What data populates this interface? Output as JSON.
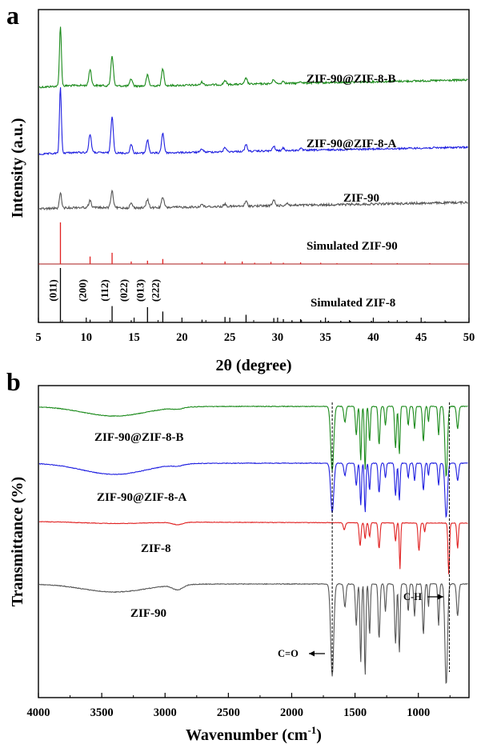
{
  "chart_data": [
    {
      "panel": "a",
      "type": "line",
      "xlabel": "2θ (degree)",
      "ylabel": "Intensity (a.u.)",
      "xlim": [
        5,
        50
      ],
      "xticks": [
        5,
        10,
        15,
        20,
        25,
        30,
        35,
        40,
        45,
        50
      ],
      "series": [
        {
          "name": "ZIF-90@ZIF-8-B",
          "color": "#1a8a1a",
          "peaks": [
            [
              7.3,
              1.0
            ],
            [
              10.4,
              0.27
            ],
            [
              12.7,
              0.5
            ],
            [
              14.7,
              0.12
            ],
            [
              16.4,
              0.18
            ],
            [
              18.0,
              0.28
            ],
            [
              22.1,
              0.05
            ],
            [
              24.5,
              0.07
            ],
            [
              26.7,
              0.1
            ],
            [
              29.6,
              0.07
            ],
            [
              30.6,
              0.04
            ],
            [
              32.4,
              0.03
            ]
          ]
        },
        {
          "name": "ZIF-90@ZIF-8-A",
          "color": "#1f1fe0",
          "peaks": [
            [
              7.3,
              1.0
            ],
            [
              10.4,
              0.28
            ],
            [
              12.7,
              0.55
            ],
            [
              14.7,
              0.13
            ],
            [
              16.4,
              0.2
            ],
            [
              18.0,
              0.3
            ],
            [
              22.1,
              0.05
            ],
            [
              24.5,
              0.07
            ],
            [
              26.7,
              0.1
            ],
            [
              29.6,
              0.07
            ],
            [
              30.6,
              0.04
            ],
            [
              32.4,
              0.03
            ]
          ]
        },
        {
          "name": "ZIF-90",
          "color": "#555555",
          "peaks": [
            [
              7.3,
              0.35
            ],
            [
              10.4,
              0.15
            ],
            [
              12.7,
              0.35
            ],
            [
              14.7,
              0.1
            ],
            [
              16.4,
              0.18
            ],
            [
              18.0,
              0.22
            ],
            [
              22.1,
              0.06
            ],
            [
              24.5,
              0.05
            ],
            [
              26.7,
              0.1
            ],
            [
              29.6,
              0.12
            ],
            [
              31.0,
              0.05
            ]
          ]
        },
        {
          "name": "Simulated ZIF-90",
          "color": "#e02020",
          "sticks": [
            [
              7.3,
              1.0
            ],
            [
              10.4,
              0.18
            ],
            [
              12.7,
              0.27
            ],
            [
              14.7,
              0.06
            ],
            [
              16.4,
              0.08
            ],
            [
              18.0,
              0.12
            ],
            [
              22.1,
              0.04
            ],
            [
              24.5,
              0.06
            ],
            [
              26.3,
              0.06
            ],
            [
              27.6,
              0.03
            ],
            [
              29.3,
              0.05
            ],
            [
              30.6,
              0.03
            ],
            [
              32.4,
              0.04
            ],
            [
              34.5,
              0.03
            ],
            [
              36.2,
              0.02
            ],
            [
              39.8,
              0.02
            ],
            [
              42.5,
              0.02
            ],
            [
              45.9,
              0.02
            ]
          ]
        },
        {
          "name": "Simulated ZIF-8",
          "color": "#000000",
          "sticks": [
            [
              7.3,
              1.0
            ],
            [
              10.4,
              0.05
            ],
            [
              12.7,
              0.3
            ],
            [
              14.7,
              0.04
            ],
            [
              16.4,
              0.28
            ],
            [
              18.0,
              0.2
            ],
            [
              22.1,
              0.05
            ],
            [
              24.5,
              0.1
            ],
            [
              26.7,
              0.14
            ],
            [
              29.6,
              0.08
            ],
            [
              30.6,
              0.06
            ],
            [
              31.5,
              0.04
            ],
            [
              32.4,
              0.06
            ],
            [
              34.5,
              0.04
            ],
            [
              35.3,
              0.03
            ],
            [
              36.6,
              0.03
            ],
            [
              37.6,
              0.03
            ],
            [
              39.8,
              0.03
            ],
            [
              41.6,
              0.03
            ],
            [
              43.5,
              0.03
            ],
            [
              45.4,
              0.02
            ],
            [
              47.6,
              0.02
            ]
          ]
        }
      ],
      "hkl_labels": [
        {
          "text": "(011)",
          "x": 7.3
        },
        {
          "text": "(200)",
          "x": 10.4
        },
        {
          "text": "(112)",
          "x": 12.7
        },
        {
          "text": "(022)",
          "x": 14.7
        },
        {
          "text": "(013)",
          "x": 16.4
        },
        {
          "text": "(222)",
          "x": 18.0
        }
      ]
    },
    {
      "panel": "b",
      "type": "line",
      "xlabel": "Wavenumber (cm⁻¹)",
      "ylabel": "Transmittance (%)",
      "xlim": [
        4000,
        600
      ],
      "xticks": [
        4000,
        3500,
        3000,
        2500,
        2000,
        1500,
        1000
      ],
      "series": [
        {
          "name": "ZIF-90@ZIF-8-B",
          "color": "#1a8a1a"
        },
        {
          "name": "ZIF-90@ZIF-8-A",
          "color": "#1f1fe0"
        },
        {
          "name": "ZIF-8",
          "color": "#e02020"
        },
        {
          "name": "ZIF-90",
          "color": "#555555"
        }
      ],
      "reference_lines": [
        1680,
        755
      ],
      "annotations": [
        {
          "text": "C=O",
          "x": 1680
        },
        {
          "text": "C-H",
          "x": 755
        }
      ]
    }
  ],
  "panel_a": {
    "letter": "a",
    "xlabel": "2θ (degree)",
    "ylabel": "Intensity (a.u.)",
    "xticks": [
      "5",
      "10",
      "15",
      "20",
      "25",
      "30",
      "35",
      "40",
      "45",
      "50"
    ],
    "labels": [
      "ZIF-90@ZIF-8-B",
      "ZIF-90@ZIF-8-A",
      "ZIF-90",
      "Simulated ZIF-90",
      "Simulated ZIF-8"
    ],
    "hkl": [
      "(011)",
      "(200)",
      "(112)",
      "(022)",
      "(013)",
      "(222)"
    ]
  },
  "panel_b": {
    "letter": "b",
    "xlabel_main": "Wavenumber (cm",
    "xlabel_sup": "-1",
    "xlabel_end": ")",
    "ylabel": "Transmittance (%)",
    "xticks": [
      "4000",
      "3500",
      "3000",
      "2500",
      "2000",
      "1500",
      "1000"
    ],
    "labels": [
      "ZIF-90@ZIF-8-B",
      "ZIF-90@ZIF-8-A",
      "ZIF-8",
      "ZIF-90"
    ],
    "annot_co": "C=O",
    "annot_ch": "C-H"
  }
}
